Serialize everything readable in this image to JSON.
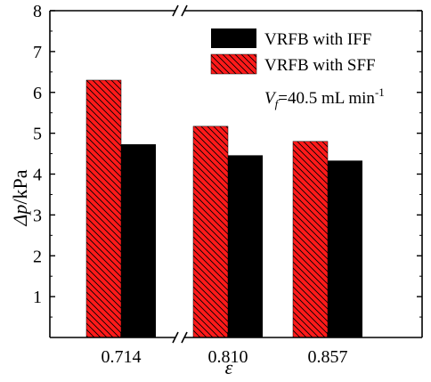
{
  "chart_data": {
    "type": "bar",
    "categories": [
      "0.714",
      "0.810",
      "0.857"
    ],
    "series": [
      {
        "name": "VRFB with SFF",
        "values": [
          6.3,
          5.17,
          4.8
        ],
        "color": "#ff1a1a",
        "pattern": "diagonal-hatch"
      },
      {
        "name": "VRFB with IFF",
        "values": [
          4.73,
          4.46,
          4.33
        ],
        "color": "#000000"
      }
    ],
    "legend_order": [
      "VRFB with IFF",
      "VRFB with SFF"
    ],
    "xlabel": "ε",
    "ylabel_symbol": "Δp",
    "ylabel_unit": "/kPa",
    "ylim": [
      0,
      8
    ],
    "yticks": [
      "1",
      "2",
      "3",
      "4",
      "5",
      "6",
      "7",
      "8"
    ],
    "axis_break": "between 0.714 and 0.810",
    "annotation": {
      "symbol": "V",
      "subscript": "f",
      "text": "=40.5 mL min",
      "superscript": "-1"
    },
    "legend_position": "top-right",
    "grid": false
  }
}
